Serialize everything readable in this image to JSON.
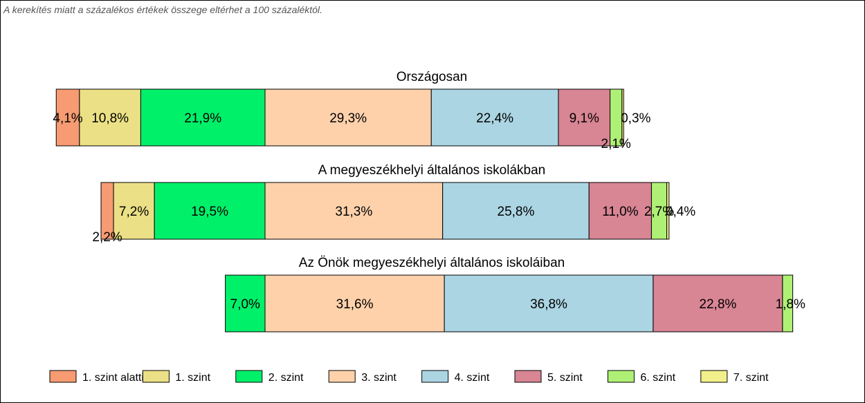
{
  "note": "A kerekítés miatt a  százalékos értékek összege eltérhet a 100 százaléktól.",
  "chart_data": {
    "type": "bar",
    "orientation": "horizontal-stacked",
    "legend_position": "bottom",
    "grid": false,
    "categories": [
      "1. szint alatti",
      "1. szint",
      "2. szint",
      "3. szint",
      "4. szint",
      "5. szint",
      "6. szint",
      "7. szint"
    ],
    "colors": [
      "#f79b72",
      "#ebe085",
      "#00f06a",
      "#fed1ab",
      "#abd5e3",
      "#d88594",
      "#aef075",
      "#f2f08a"
    ],
    "bars": [
      {
        "title": "Országosan",
        "values": [
          4.1,
          10.8,
          21.9,
          29.3,
          22.4,
          9.1,
          2.1,
          0.3
        ],
        "labels": [
          "4,1%",
          "10,8%",
          "21,9%",
          "29,3%",
          "22,4%",
          "9,1%",
          "2,1%",
          "0,3%"
        ]
      },
      {
        "title": "A megyeszékhelyi általános iskolákban",
        "values": [
          2.2,
          7.2,
          19.5,
          31.3,
          25.8,
          11.0,
          2.7,
          0.4
        ],
        "labels": [
          "2,2%",
          "7,2%",
          "19,5%",
          "31,3%",
          "25,8%",
          "11,0%",
          "2,7%",
          "0,4%"
        ]
      },
      {
        "title": "Az Önök megyeszékhelyi általános iskoláiban",
        "values": [
          0,
          0,
          7.0,
          31.6,
          36.8,
          22.8,
          1.8,
          0
        ],
        "labels": [
          "",
          "",
          "7,0%",
          "31,6%",
          "36,8%",
          "22,8%",
          "1,8%",
          ""
        ]
      }
    ]
  }
}
